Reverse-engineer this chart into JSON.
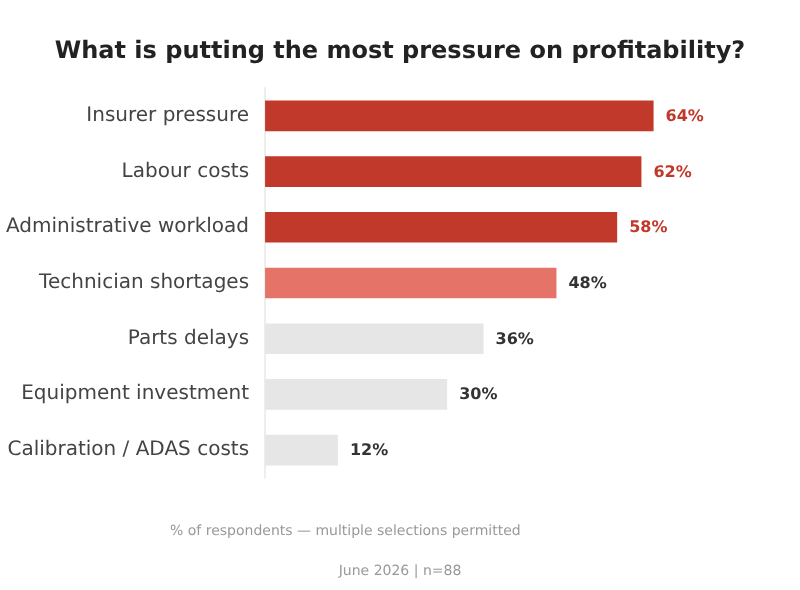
{
  "chart_data": {
    "type": "bar",
    "orientation": "horizontal",
    "title": "What is putting the most pressure on profitability?",
    "categories": [
      "Insurer pressure",
      "Labour costs",
      "Administrative workload",
      "Technician shortages",
      "Parts delays",
      "Equipment investment",
      "Calibration / ADAS costs"
    ],
    "values": [
      64,
      62,
      58,
      48,
      36,
      30,
      12
    ],
    "colors": [
      "#c0392b",
      "#c0392b",
      "#c0392b",
      "#e57368",
      "#e6e6e6",
      "#e6e6e6",
      "#e6e6e6"
    ],
    "value_labels": [
      "64%",
      "62%",
      "58%",
      "48%",
      "36%",
      "30%",
      "12%"
    ],
    "grid": false,
    "annotations": [
      "% of respondents — multiple selections permitted",
      "June 2026 | n=88"
    ]
  }
}
